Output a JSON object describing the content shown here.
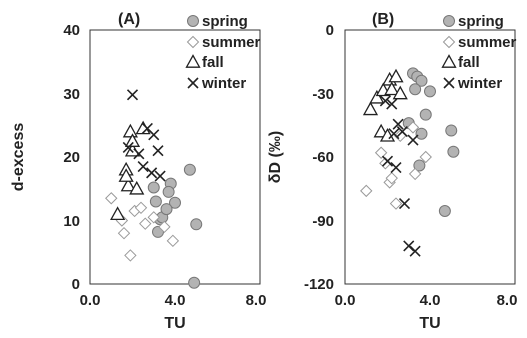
{
  "chart_data": [
    {
      "type": "scatter",
      "panel_label": "(A)",
      "xlabel": "TU",
      "ylabel": "d-excess",
      "xlim": [
        0,
        8
      ],
      "ylim": [
        0,
        40
      ],
      "xticks": [
        "0.0",
        "4.0",
        "8.0"
      ],
      "yticks": [
        "0",
        "10",
        "20",
        "30",
        "40"
      ],
      "legend_position": "top-right",
      "series": [
        {
          "name": "spring",
          "marker": "circle",
          "points": [
            [
              3.3,
              10.2
            ],
            [
              3.4,
              10.5
            ],
            [
              3.2,
              8.2
            ],
            [
              3.8,
              15.8
            ],
            [
              3.7,
              14.5
            ],
            [
              3.0,
              15.2
            ],
            [
              4.0,
              12.8
            ],
            [
              4.7,
              18.0
            ],
            [
              5.0,
              9.4
            ],
            [
              3.6,
              11.8
            ],
            [
              4.9,
              0.2
            ],
            [
              3.1,
              13.0
            ]
          ]
        },
        {
          "name": "summer",
          "marker": "diamond",
          "points": [
            [
              1.0,
              13.5
            ],
            [
              1.9,
              4.5
            ],
            [
              1.6,
              8.0
            ],
            [
              2.1,
              11.5
            ],
            [
              2.6,
              9.5
            ],
            [
              3.0,
              10.5
            ],
            [
              3.5,
              9.0
            ],
            [
              3.9,
              6.8
            ],
            [
              2.4,
              12.0
            ],
            [
              1.5,
              10.0
            ]
          ]
        },
        {
          "name": "fall",
          "marker": "triangle",
          "points": [
            [
              1.3,
              11.0
            ],
            [
              1.7,
              18.0
            ],
            [
              1.9,
              24.0
            ],
            [
              2.0,
              21.0
            ],
            [
              1.8,
              15.5
            ],
            [
              2.2,
              15.0
            ],
            [
              2.5,
              24.5
            ],
            [
              2.0,
              22.5
            ],
            [
              1.7,
              17.0
            ]
          ]
        },
        {
          "name": "winter",
          "marker": "x",
          "points": [
            [
              2.0,
              29.8
            ],
            [
              2.3,
              20.5
            ],
            [
              2.5,
              18.5
            ],
            [
              2.7,
              24.5
            ],
            [
              3.0,
              23.5
            ],
            [
              3.2,
              21.0
            ],
            [
              3.3,
              17.0
            ],
            [
              2.9,
              17.5
            ],
            [
              1.8,
              21.5
            ]
          ]
        }
      ]
    },
    {
      "type": "scatter",
      "panel_label": "(B)",
      "xlabel": "TU",
      "ylabel": "δD (‰)",
      "xlim": [
        0,
        8
      ],
      "ylim": [
        -120,
        0
      ],
      "xticks": [
        "0.0",
        "4.0",
        "8.0"
      ],
      "yticks": [
        "0",
        "-30",
        "-60",
        "-90",
        "-120"
      ],
      "legend_position": "top-right",
      "series": [
        {
          "name": "spring",
          "marker": "circle",
          "points": [
            [
              3.2,
              -20.5
            ],
            [
              3.4,
              -22.0
            ],
            [
              3.6,
              -24.0
            ],
            [
              3.3,
              -28.0
            ],
            [
              4.0,
              -29.0
            ],
            [
              3.8,
              -40.0
            ],
            [
              3.0,
              -44.0
            ],
            [
              3.6,
              -49.0
            ],
            [
              5.0,
              -47.5
            ],
            [
              5.1,
              -57.5
            ],
            [
              3.5,
              -64.0
            ],
            [
              4.7,
              -85.5
            ]
          ]
        },
        {
          "name": "summer",
          "marker": "diamond",
          "points": [
            [
              1.0,
              -76.0
            ],
            [
              1.7,
              -58.0
            ],
            [
              1.9,
              -63.0
            ],
            [
              2.1,
              -72.0
            ],
            [
              2.4,
              -82.0
            ],
            [
              3.3,
              -68.0
            ],
            [
              3.8,
              -60.0
            ],
            [
              2.2,
              -70.0
            ],
            [
              2.6,
              -50.0
            ],
            [
              3.2,
              -46.0
            ]
          ]
        },
        {
          "name": "fall",
          "marker": "triangle",
          "points": [
            [
              1.2,
              -37.5
            ],
            [
              1.5,
              -32.0
            ],
            [
              1.8,
              -28.5
            ],
            [
              2.1,
              -23.5
            ],
            [
              2.4,
              -22.0
            ],
            [
              2.2,
              -28.0
            ],
            [
              1.7,
              -48.0
            ],
            [
              2.0,
              -50.0
            ],
            [
              2.6,
              -30.0
            ]
          ]
        },
        {
          "name": "winter",
          "marker": "x",
          "points": [
            [
              1.9,
              -33.5
            ],
            [
              2.2,
              -35.0
            ],
            [
              2.3,
              -49.0
            ],
            [
              2.5,
              -44.5
            ],
            [
              2.7,
              -48.0
            ],
            [
              2.0,
              -62.0
            ],
            [
              2.4,
              -65.0
            ],
            [
              2.8,
              -82.0
            ],
            [
              3.0,
              -102.0
            ],
            [
              3.3,
              -104.5
            ],
            [
              3.2,
              -52.0
            ]
          ]
        }
      ]
    }
  ]
}
